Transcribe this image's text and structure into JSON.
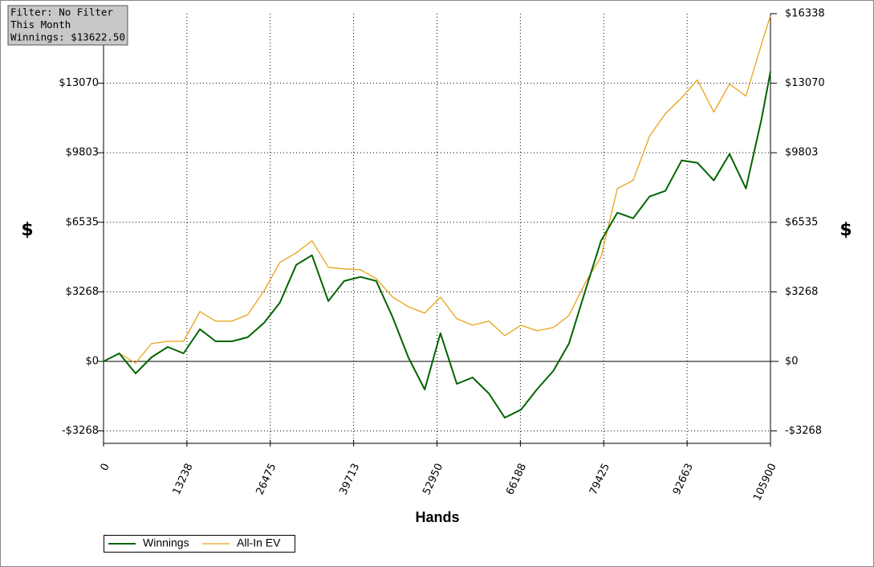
{
  "chart_data": {
    "type": "line",
    "xlabel": "Hands",
    "ylabel": "$",
    "annotations": [
      "Filter: No Filter",
      "This Month",
      "Winnings: $13622.50"
    ],
    "x": [
      0,
      2500,
      5100,
      7600,
      10200,
      12700,
      15300,
      17800,
      20400,
      22900,
      25500,
      28000,
      30600,
      33100,
      35700,
      38200,
      40800,
      43300,
      45900,
      48400,
      51000,
      53500,
      56100,
      58600,
      61200,
      63700,
      66300,
      68800,
      71400,
      73900,
      76500,
      79000,
      81600,
      84100,
      86700,
      89200,
      91800,
      94300,
      96900,
      99400,
      102000,
      104500,
      105900
    ],
    "series": [
      {
        "name": "Winnings",
        "color": "#006400",
        "values": [
          0,
          378,
          -567,
          189,
          680,
          378,
          1511,
          944,
          944,
          1133,
          1813,
          2758,
          4533,
          4987,
          2834,
          3778,
          3967,
          3778,
          2078,
          189,
          -1322,
          1322,
          -1058,
          -756,
          -1511,
          -2645,
          -2267,
          -1322,
          -453,
          831,
          3324,
          5667,
          6989,
          6725,
          7745,
          8009,
          9445,
          9332,
          8501,
          9747,
          8123,
          11410,
          13622.5
        ]
      },
      {
        "name": "All-In EV",
        "color": "#e8a317",
        "values": [
          0,
          378,
          -76,
          831,
          944,
          944,
          2342,
          1889,
          1889,
          2191,
          3325,
          4647,
          5100,
          5667,
          4420,
          4345,
          4307,
          3891,
          3022,
          2569,
          2267,
          3022,
          2002,
          1700,
          1889,
          1209,
          1700,
          1436,
          1587,
          2153,
          3702,
          4911,
          8123,
          8501,
          10578,
          11636,
          12392,
          13223,
          11712,
          13034,
          12467,
          14923,
          16245
        ]
      }
    ],
    "xlim": [
      0,
      105900
    ],
    "xticks": [
      0,
      13238,
      26475,
      39713,
      52950,
      66188,
      79425,
      92663,
      105900
    ],
    "ylim": [
      -3850,
      16338
    ],
    "yticks": [
      {
        "value": -3268,
        "label": "-$3268"
      },
      {
        "value": 0,
        "label": "$0"
      },
      {
        "value": 3268,
        "label": "$3268"
      },
      {
        "value": 6535,
        "label": "$6535"
      },
      {
        "value": 9803,
        "label": "$9803"
      },
      {
        "value": 13070,
        "label": "$13070"
      }
    ],
    "y2lim": [
      -3850,
      16338
    ],
    "y2ticks": [
      {
        "value": -3268,
        "label": "-$3268"
      },
      {
        "value": 0,
        "label": "$0"
      },
      {
        "value": 3268,
        "label": "$3268"
      },
      {
        "value": 6535,
        "label": "$6535"
      },
      {
        "value": 9803,
        "label": "$9803"
      },
      {
        "value": 13070,
        "label": "$13070"
      },
      {
        "value": 16338,
        "label": "$16338"
      }
    ],
    "grid": true,
    "legend": "bottom-left"
  }
}
